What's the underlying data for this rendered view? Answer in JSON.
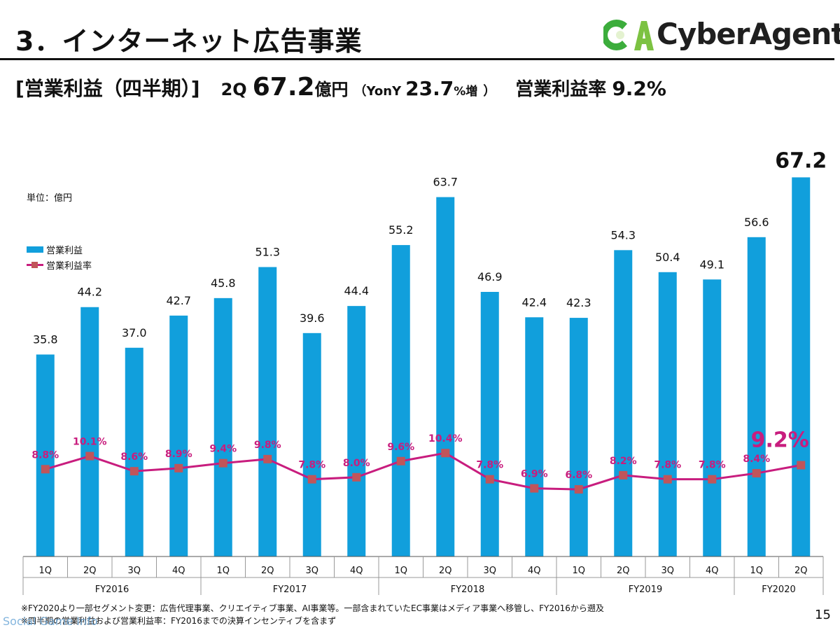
{
  "header": {
    "title": "3．インターネット広告事業",
    "logo_text": "CyberAgent"
  },
  "subtitle": {
    "label": "[営業利益（四半期）]",
    "quarter": "2Q",
    "value": "67.2",
    "unit": "億円",
    "yoy_open": "（YonY",
    "yoy_value": "23.7",
    "yoy_unit": "%増",
    "yoy_close": "）",
    "margin_label": "営業利益率",
    "margin_value": "9.2%"
  },
  "colors": {
    "bar": "#119fdc",
    "line": "#c81d7e",
    "marker": "#c0555a",
    "rate_label": "#c81d7e"
  },
  "chart_data": {
    "type": "bar",
    "unit_label": "単位：億円",
    "legend_position": "top-left",
    "categories": [
      "1Q",
      "2Q",
      "3Q",
      "4Q",
      "1Q",
      "2Q",
      "3Q",
      "4Q",
      "1Q",
      "2Q",
      "3Q",
      "4Q",
      "1Q",
      "2Q",
      "3Q",
      "4Q",
      "1Q",
      "2Q"
    ],
    "groups": [
      {
        "name": "FY2016",
        "count": 4
      },
      {
        "name": "FY2017",
        "count": 4
      },
      {
        "name": "FY2018",
        "count": 4
      },
      {
        "name": "FY2019",
        "count": 4
      },
      {
        "name": "FY2020",
        "count": 2
      }
    ],
    "series": [
      {
        "name": "営業利益",
        "type": "bar",
        "values": [
          35.8,
          44.2,
          37.0,
          42.7,
          45.8,
          51.3,
          39.6,
          44.4,
          55.2,
          63.7,
          46.9,
          42.4,
          42.3,
          54.3,
          50.4,
          49.1,
          56.6,
          67.2
        ],
        "labels": [
          "35.8",
          "44.2",
          "37.0",
          "42.7",
          "45.8",
          "51.3",
          "39.6",
          "44.4",
          "55.2",
          "63.7",
          "46.9",
          "42.4",
          "42.3",
          "54.3",
          "50.4",
          "49.1",
          "56.6",
          "67.2"
        ]
      },
      {
        "name": "営業利益率",
        "type": "line",
        "values": [
          8.8,
          10.1,
          8.6,
          8.9,
          9.4,
          9.8,
          7.8,
          8.0,
          9.6,
          10.4,
          7.8,
          6.9,
          6.8,
          8.2,
          7.8,
          7.8,
          8.4,
          9.2
        ],
        "labels": [
          "8.8%",
          "10.1%",
          "8.6%",
          "8.9%",
          "9.4%",
          "9.8%",
          "7.8%",
          "8.0%",
          "9.6%",
          "10.4%",
          "7.8%",
          "6.9%",
          "6.8%",
          "8.2%",
          "7.8%",
          "7.8%",
          "8.4%",
          "9.2%"
        ]
      }
    ]
  },
  "footnotes": [
    "※FY2020より一部セグメント変更：広告代理事業、クリエイティブ事業、AI事業等。一部含まれていたEC事業はメディア事業へ移管し、FY2016から遡及",
    "※四半期の営業利益および営業利益率：FY2016までの決算インセンティブを含まず"
  ],
  "watermark": "Social Game Info",
  "page_number": "15"
}
